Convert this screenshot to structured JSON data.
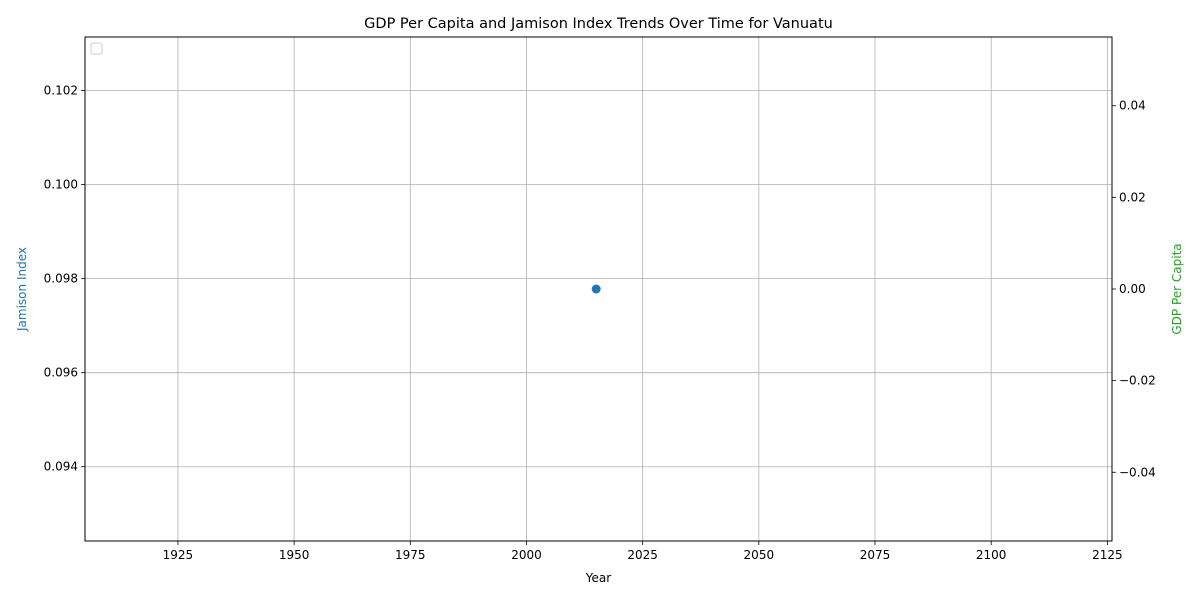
{
  "chart_data": {
    "type": "scatter",
    "title": "GDP Per Capita and Jamison Index Trends Over Time for Vanuatu",
    "xlabel": "Year",
    "ylabel_left": "Jamison Index",
    "ylabel_right": "GDP Per Capita",
    "xlim": [
      1905,
      2126
    ],
    "ylim_left": [
      0.09242,
      0.10314
    ],
    "ylim_right": [
      -0.055,
      0.055
    ],
    "x_ticks": [
      1925,
      1950,
      1975,
      2000,
      2025,
      2050,
      2075,
      2100,
      2125
    ],
    "y_left_ticks": [
      0.094,
      0.096,
      0.098,
      0.1,
      0.102
    ],
    "y_left_tick_labels": [
      "0.094",
      "0.096",
      "0.098",
      "0.100",
      "0.102"
    ],
    "y_right_ticks": [
      -0.04,
      -0.02,
      0.0,
      0.02,
      0.04
    ],
    "y_right_tick_labels": [
      "−0.04",
      "−0.02",
      "0.00",
      "0.02",
      "0.04"
    ],
    "grid": true,
    "legend": {
      "location": "upper-left",
      "entries": []
    },
    "series": [
      {
        "axis": "left",
        "color": "#1f77b4",
        "marker": "circle",
        "points": [
          {
            "x": 2015,
            "y": 0.09778
          }
        ]
      }
    ],
    "colors": {
      "left_axis_label": "#1f77b4",
      "right_axis_label": "#2ca02c",
      "grid": "#b0b0b0"
    }
  }
}
